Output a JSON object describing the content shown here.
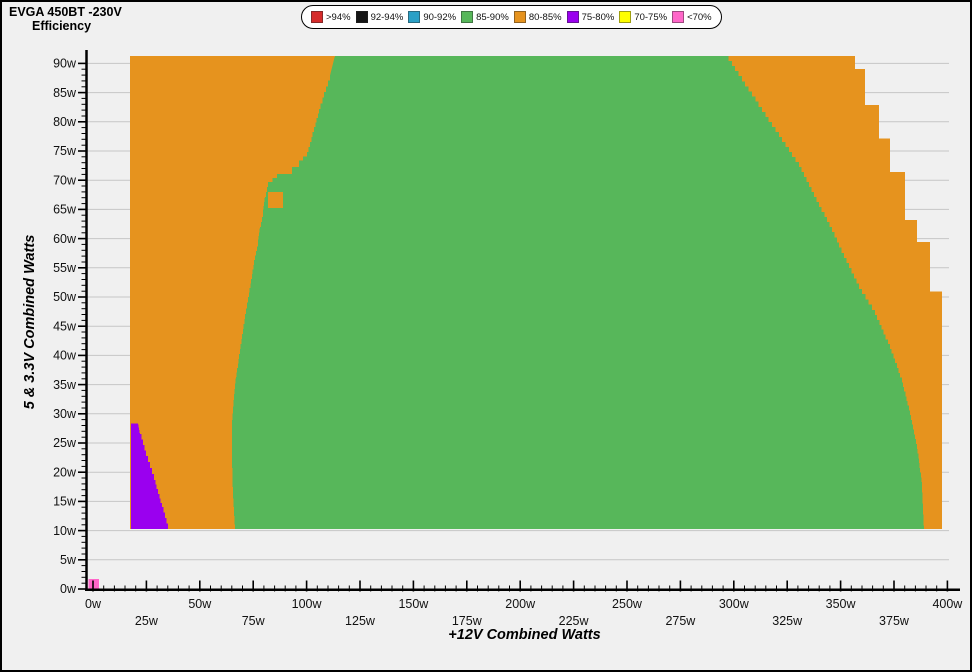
{
  "chart_data": {
    "type": "heatmap",
    "title": "EVGA 450BT -230V",
    "subtitle": "Efficiency",
    "xlabel": "+12V Combined Watts",
    "ylabel": "5 & 3.3V Combined Watts",
    "x_axis": {
      "min": 0,
      "max": 400,
      "major_step": 25,
      "minor_step": 5,
      "unit": "w",
      "tick_labels": [
        "0w",
        "25w",
        "50w",
        "75w",
        "100w",
        "125w",
        "150w",
        "175w",
        "200w",
        "225w",
        "250w",
        "275w",
        "300w",
        "325w",
        "350w",
        "375w",
        "400w"
      ]
    },
    "y_axis": {
      "min": 0,
      "max": 90,
      "major_step": 5,
      "minor_step": 1,
      "unit": "w",
      "tick_labels": [
        "0w",
        "5w",
        "10w",
        "15w",
        "20w",
        "25w",
        "30w",
        "35w",
        "40w",
        "45w",
        "50w",
        "55w",
        "60w",
        "65w",
        "70w",
        "75w",
        "80w",
        "85w",
        "90w"
      ]
    },
    "grid": {
      "horizontal": true,
      "vertical": false
    },
    "legend_position": "top",
    "legend": [
      {
        "label": ">94%",
        "color": "#d62b2b"
      },
      {
        "label": "92-94%",
        "color": "#161616"
      },
      {
        "label": "90-92%",
        "color": "#2ba0c6"
      },
      {
        "label": "85-90%",
        "color": "#57b75a"
      },
      {
        "label": "80-85%",
        "color": "#e6931e"
      },
      {
        "label": "75-80%",
        "color": "#9a00ef"
      },
      {
        "label": "70-75%",
        "color": "#ffff00"
      },
      {
        "label": "<70%",
        "color": "#ff66c9"
      }
    ],
    "regions": [
      {
        "name": "efficiency-80-85-base",
        "efficiency": "80-85%",
        "color": "#e6931e",
        "step": true,
        "points_watts": [
          [
            17.3,
            10.3
          ],
          [
            17.3,
            91.3
          ],
          [
            356.7,
            91.3
          ],
          [
            356.7,
            89.0
          ],
          [
            361.4,
            89.0
          ],
          [
            361.4,
            82.9
          ],
          [
            368.0,
            82.9
          ],
          [
            368.0,
            77.1
          ],
          [
            373.1,
            77.1
          ],
          [
            373.1,
            71.4
          ],
          [
            380.1,
            71.4
          ],
          [
            380.1,
            63.2
          ],
          [
            385.8,
            63.2
          ],
          [
            385.8,
            59.4
          ],
          [
            391.9,
            59.4
          ],
          [
            391.9,
            50.9
          ],
          [
            397.5,
            50.9
          ],
          [
            397.5,
            10.3
          ]
        ]
      },
      {
        "name": "efficiency-85-90",
        "efficiency": "85-90%",
        "color": "#57b75a",
        "step": true,
        "points_watts": [
          [
            113.3,
            91.3
          ],
          [
            295.9,
            91.3
          ],
          [
            313.2,
            81.7
          ],
          [
            330.5,
            72.3
          ],
          [
            345.9,
            61.1
          ],
          [
            358.6,
            51.4
          ],
          [
            366.1,
            46.9
          ],
          [
            373.1,
            41.1
          ],
          [
            378.7,
            35.4
          ],
          [
            382.5,
            29.8
          ],
          [
            385.8,
            24.0
          ],
          [
            388.1,
            17.5
          ],
          [
            389.0,
            10.3
          ],
          [
            66.5,
            10.3
          ],
          [
            65.5,
            16.6
          ],
          [
            65.1,
            21.7
          ],
          [
            65.1,
            28.6
          ],
          [
            66.0,
            32.9
          ],
          [
            66.9,
            36.3
          ],
          [
            68.4,
            40.2
          ],
          [
            69.8,
            43.7
          ],
          [
            71.2,
            47.1
          ],
          [
            72.6,
            50.0
          ],
          [
            74.0,
            53.1
          ],
          [
            75.4,
            56.3
          ],
          [
            77.2,
            59.4
          ],
          [
            78.2,
            62.0
          ],
          [
            79.6,
            64.6
          ],
          [
            80.5,
            67.1
          ],
          [
            81.9,
            69.7
          ],
          [
            86.1,
            71.1
          ],
          [
            93.2,
            72.3
          ],
          [
            96.4,
            73.4
          ],
          [
            100.2,
            74.8
          ],
          [
            101.6,
            76.5
          ],
          [
            103.5,
            79.1
          ],
          [
            105.8,
            82.2
          ],
          [
            108.1,
            85.1
          ],
          [
            111.0,
            88.0
          ]
        ]
      },
      {
        "name": "efficiency-75-80",
        "efficiency": "75-80%",
        "color": "#9a00ef",
        "step": true,
        "points_watts": [
          [
            17.8,
            28.3
          ],
          [
            21.1,
            28.3
          ],
          [
            22.0,
            26.5
          ],
          [
            23.4,
            24.7
          ],
          [
            24.8,
            22.8
          ],
          [
            26.7,
            20.7
          ],
          [
            28.6,
            18.7
          ],
          [
            30.4,
            16.3
          ],
          [
            32.3,
            14.0
          ],
          [
            33.7,
            12.2
          ],
          [
            35.1,
            10.3
          ],
          [
            17.8,
            10.3
          ]
        ]
      },
      {
        "name": "efficiency-80-85-island",
        "efficiency": "80-85%",
        "color": "#e6931e",
        "step": false,
        "points_watts": [
          [
            81.9,
            68.0
          ],
          [
            88.9,
            68.0
          ],
          [
            88.9,
            65.2
          ],
          [
            81.9,
            65.2
          ]
        ]
      },
      {
        "name": "efficiency-below-70",
        "efficiency": "<70%",
        "color": "#ff66c9",
        "step": false,
        "points_watts": [
          [
            -2.0,
            1.75
          ],
          [
            2.8,
            1.75
          ],
          [
            2.8,
            0.0
          ],
          [
            -2.0,
            0.0
          ]
        ]
      }
    ],
    "colors": {
      "background": "#f0f0f0",
      "gridline": "#c6c6c6",
      "axis": "#000000",
      "tick_text": "#111111"
    }
  }
}
